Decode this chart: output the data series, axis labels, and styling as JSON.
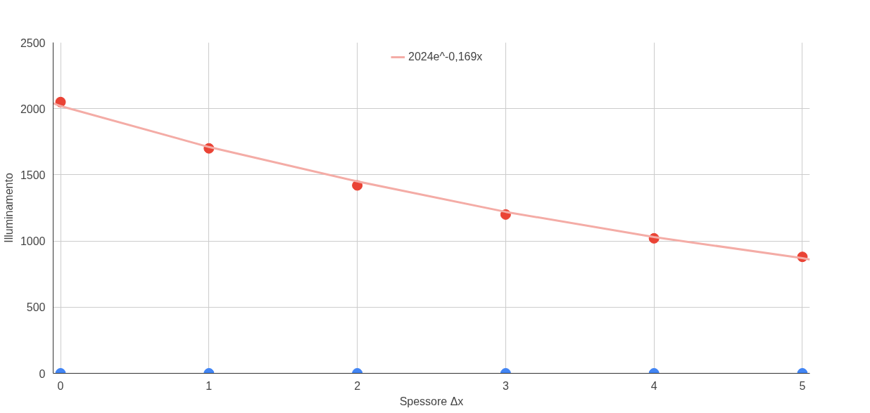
{
  "chart_data": {
    "type": "scatter",
    "xlabel": "Spessore Δx",
    "ylabel": "Illuminamento",
    "x": [
      0,
      1,
      2,
      3,
      4,
      5
    ],
    "series": [
      {
        "color": "#4285f4",
        "values": [
          0,
          0,
          0,
          0,
          0,
          0
        ]
      },
      {
        "color": "#ea4335",
        "values": [
          2050,
          1700,
          1420,
          1200,
          1020,
          880
        ]
      },
      {
        "name": "2024e^-0,169x",
        "type": "line",
        "color": "#f4aca6",
        "x": [
          -0.05,
          0,
          1,
          2,
          3,
          4,
          5,
          5.05
        ],
        "values": [
          2040,
          2020,
          1710,
          1450,
          1220,
          1030,
          870,
          860
        ],
        "marker": "none"
      }
    ],
    "xlim": [
      -0.05,
      5.05
    ],
    "ylim": [
      0,
      2500
    ],
    "xticks": [
      0,
      1,
      2,
      3,
      4,
      5
    ],
    "yticks": [
      0,
      500,
      1000,
      1500,
      2000,
      2500
    ],
    "grid": true,
    "legend": "top",
    "marker": "circle"
  }
}
